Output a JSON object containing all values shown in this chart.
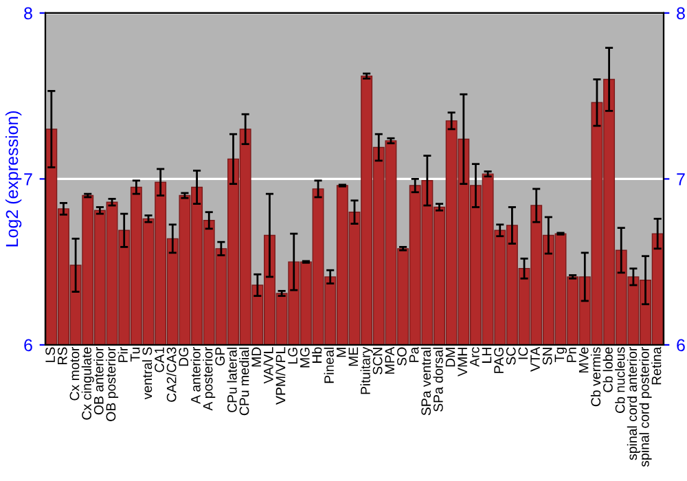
{
  "chart_data": {
    "type": "bar",
    "ylabel": "Log2 (expression)",
    "categories": [
      "LS",
      "RS",
      "Cx motor",
      "Cx cingulate",
      "OB anterior",
      "OB posterior",
      "Pir",
      "Tu",
      "ventral S",
      "CA1",
      "CA2/CA3",
      "DG",
      "A anterior",
      "A posterior",
      "GP",
      "CPu lateral",
      "CPu medial",
      "MD",
      "VA/VL",
      "VPM/VPL",
      "LG",
      "MG",
      "Hb",
      "Pineal",
      "M",
      "ME",
      "Pituitary",
      "SCN",
      "MPA",
      "SO",
      "Pa",
      "SPa ventral",
      "SPa dorsal",
      "DM",
      "VMH",
      "Arc",
      "LH",
      "PAG",
      "SC",
      "IC",
      "VTA",
      "SN",
      "Tg",
      "Pn",
      "MVe",
      "Cb vermis",
      "Cb lobe",
      "Cb nucleus",
      "spinal cord anterior",
      "spinal cord posterior",
      "Retina"
    ],
    "values": [
      7.3,
      6.82,
      6.48,
      6.9,
      6.81,
      6.86,
      6.69,
      6.95,
      6.76,
      6.98,
      6.64,
      6.9,
      6.95,
      6.75,
      6.58,
      7.12,
      7.3,
      6.36,
      6.66,
      6.31,
      6.5,
      6.5,
      6.94,
      6.41,
      6.96,
      6.8,
      7.62,
      7.19,
      7.23,
      6.58,
      6.96,
      6.99,
      6.83,
      7.35,
      7.24,
      6.96,
      7.03,
      6.69,
      6.72,
      6.46,
      6.84,
      6.66,
      6.67,
      6.41,
      6.41,
      7.46,
      7.6,
      6.57,
      6.41,
      6.39,
      6.67
    ],
    "errors": [
      0.23,
      0.035,
      0.16,
      0.01,
      0.02,
      0.02,
      0.1,
      0.04,
      0.02,
      0.08,
      0.085,
      0.015,
      0.1,
      0.05,
      0.04,
      0.15,
      0.09,
      0.065,
      0.25,
      0.015,
      0.17,
      0.005,
      0.05,
      0.04,
      0.005,
      0.07,
      0.015,
      0.08,
      0.015,
      0.01,
      0.04,
      0.15,
      0.02,
      0.05,
      0.27,
      0.13,
      0.015,
      0.035,
      0.11,
      0.06,
      0.1,
      0.11,
      0.005,
      0.01,
      0.145,
      0.14,
      0.19,
      0.135,
      0.05,
      0.145,
      0.09
    ],
    "color": "#b22a2a",
    "ylim": [
      6,
      8
    ],
    "yticks": [
      6,
      7,
      8
    ],
    "y2lim": [
      6,
      8
    ],
    "y2ticks": [
      6,
      7,
      8
    ],
    "grid": "y",
    "legend": false
  }
}
